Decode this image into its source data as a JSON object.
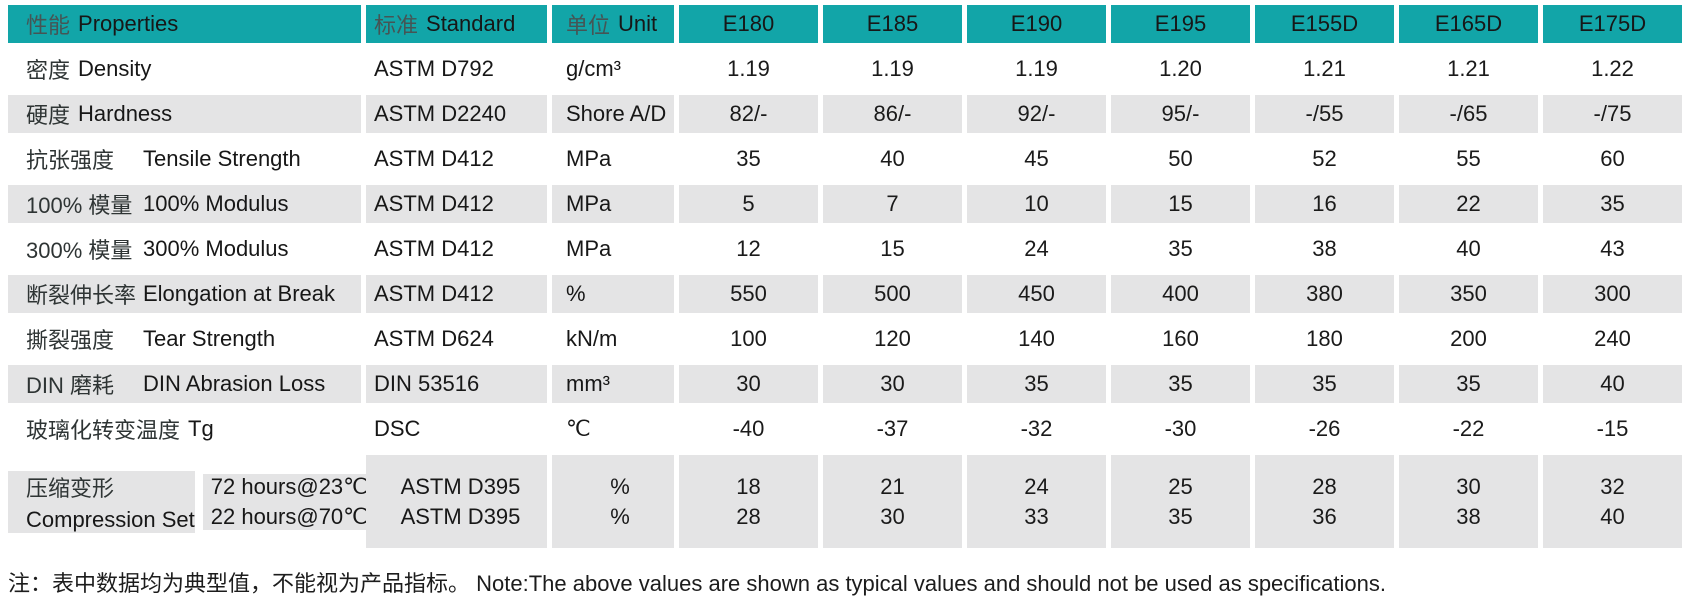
{
  "colors": {
    "header_teal": "#12a5a8",
    "row_gray": "#e4e4e5"
  },
  "table": {
    "header": {
      "properties_zh": "性能",
      "properties_en": "Properties",
      "standard_zh": "标准",
      "standard_en": "Standard",
      "unit_zh": "单位",
      "unit_en": "Unit",
      "products": [
        "E180",
        "E185",
        "E190",
        "E195",
        "E155D",
        "E165D",
        "E175D"
      ]
    },
    "rows": [
      {
        "zh": "密度",
        "en": "Density",
        "standard": "ASTM D792",
        "unit": "g/cm³",
        "values": [
          "1.19",
          "1.19",
          "1.19",
          "1.20",
          "1.21",
          "1.21",
          "1.22"
        ]
      },
      {
        "zh": "硬度",
        "en": "Hardness",
        "standard": "ASTM D2240",
        "unit": "Shore A/D",
        "values": [
          "82/-",
          "86/-",
          "92/-",
          "95/-",
          "-/55",
          "-/65",
          "-/75"
        ]
      },
      {
        "zh": "抗张强度",
        "en": "Tensile Strength",
        "standard": "ASTM D412",
        "unit": "MPa",
        "values": [
          "35",
          "40",
          "45",
          "50",
          "52",
          "55",
          "60"
        ]
      },
      {
        "zh": "100% 模量",
        "en": "100% Modulus",
        "standard": "ASTM D412",
        "unit": "MPa",
        "values": [
          "5",
          "7",
          "10",
          "15",
          "16",
          "22",
          "35"
        ]
      },
      {
        "zh": "300% 模量",
        "en": "300% Modulus",
        "standard": "ASTM D412",
        "unit": "MPa",
        "values": [
          "12",
          "15",
          "24",
          "35",
          "38",
          "40",
          "43"
        ]
      },
      {
        "zh": "断裂伸长率",
        "en": "Elongation at Break",
        "standard": "ASTM D412",
        "unit": "%",
        "values": [
          "550",
          "500",
          "450",
          "400",
          "380",
          "350",
          "300"
        ]
      },
      {
        "zh": "撕裂强度",
        "en": "Tear Strength",
        "standard": "ASTM D624",
        "unit": "kN/m",
        "values": [
          "100",
          "120",
          "140",
          "160",
          "180",
          "200",
          "240"
        ]
      },
      {
        "zh": "DIN 磨耗",
        "en": "DIN Abrasion Loss",
        "standard": "DIN 53516",
        "unit": "mm³",
        "values": [
          "30",
          "30",
          "35",
          "35",
          "35",
          "35",
          "40"
        ]
      },
      {
        "zh": "玻璃化转变温度",
        "en": "Tg",
        "standard": "DSC",
        "unit": "℃",
        "values": [
          "-40",
          "-37",
          "-32",
          "-30",
          "-26",
          "-22",
          "-15"
        ]
      }
    ],
    "compression_row": {
      "zh": "压缩变形",
      "en": "Compression Set",
      "condition_1": "72 hours@23℃",
      "condition_2": "22 hours@70℃",
      "standard_1": "ASTM D395",
      "standard_2": "ASTM D395",
      "unit_1": "%",
      "unit_2": "%",
      "values": [
        {
          "a": "18",
          "b": "28"
        },
        {
          "a": "21",
          "b": "30"
        },
        {
          "a": "24",
          "b": "33"
        },
        {
          "a": "25",
          "b": "35"
        },
        {
          "a": "28",
          "b": "36"
        },
        {
          "a": "30",
          "b": "38"
        },
        {
          "a": "32",
          "b": "40"
        }
      ]
    }
  },
  "note": "注：表中数据均为典型值，不能视为产品指标。 Note:The above values are shown as typical values and should not be used as specifications."
}
